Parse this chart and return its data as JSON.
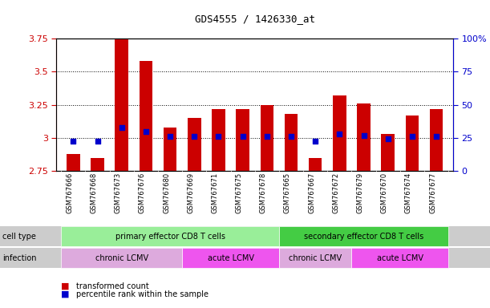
{
  "title": "GDS4555 / 1426330_at",
  "samples": [
    "GSM767666",
    "GSM767668",
    "GSM767673",
    "GSM767676",
    "GSM767680",
    "GSM767669",
    "GSM767671",
    "GSM767675",
    "GSM767678",
    "GSM767665",
    "GSM767667",
    "GSM767672",
    "GSM767679",
    "GSM767670",
    "GSM767674",
    "GSM767677"
  ],
  "bar_values": [
    2.88,
    2.85,
    3.88,
    3.58,
    3.08,
    3.15,
    3.22,
    3.22,
    3.25,
    3.18,
    2.85,
    3.32,
    3.26,
    3.03,
    3.17,
    3.22
  ],
  "bar_base": 2.75,
  "blue_values": [
    2.972,
    2.972,
    3.08,
    3.05,
    3.01,
    3.01,
    3.01,
    3.01,
    3.01,
    3.01,
    2.972,
    3.03,
    3.02,
    2.99,
    3.01,
    3.01
  ],
  "ylim_left": [
    2.75,
    3.75
  ],
  "ylim_right": [
    0,
    100
  ],
  "yticks_left": [
    2.75,
    3.0,
    3.25,
    3.5,
    3.75
  ],
  "ytick_labels_left": [
    "2.75",
    "3",
    "3.25",
    "3.5",
    "3.75"
  ],
  "yticks_right": [
    0,
    25,
    50,
    75,
    100
  ],
  "ytick_labels_right": [
    "0",
    "25",
    "50",
    "75",
    "100%"
  ],
  "bar_color": "#cc0000",
  "blue_color": "#0000cc",
  "cell_type_groups": [
    {
      "label": "primary effector CD8 T cells",
      "start": 0,
      "end": 8,
      "color": "#99ee99"
    },
    {
      "label": "secondary effector CD8 T cells",
      "start": 9,
      "end": 15,
      "color": "#44cc44"
    }
  ],
  "infection_groups": [
    {
      "label": "chronic LCMV",
      "start": 0,
      "end": 4,
      "color": "#ddaadd"
    },
    {
      "label": "acute LCMV",
      "start": 5,
      "end": 8,
      "color": "#ee55ee"
    },
    {
      "label": "chronic LCMV",
      "start": 9,
      "end": 11,
      "color": "#ddaadd"
    },
    {
      "label": "acute LCMV",
      "start": 12,
      "end": 15,
      "color": "#ee55ee"
    }
  ],
  "dotted_lines": [
    3.0,
    3.25,
    3.5
  ],
  "tick_bg_color": "#cccccc",
  "row_label_color": "#888888",
  "plot_bg": "#ffffff"
}
